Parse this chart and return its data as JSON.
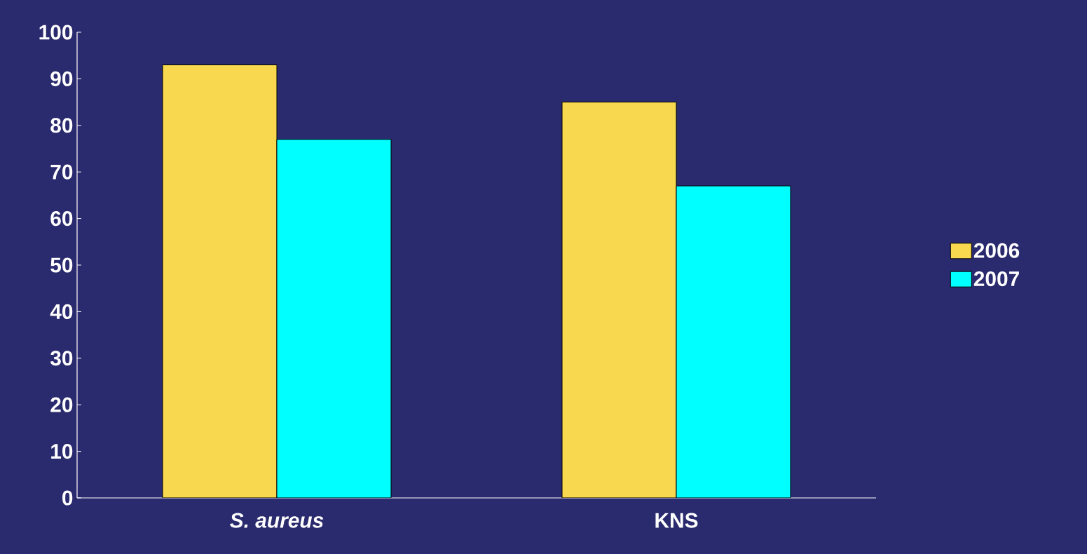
{
  "chart_data": {
    "type": "bar",
    "categories": [
      "*S. aureus*",
      "KNS"
    ],
    "series": [
      {
        "name": "2006",
        "color": "#f7d84f",
        "values": [
          93,
          85
        ]
      },
      {
        "name": "2007",
        "color": "#00ffff",
        "values": [
          77,
          67
        ]
      }
    ],
    "ylim": [
      0,
      100
    ],
    "yticks": [
      0,
      10,
      20,
      30,
      40,
      50,
      60,
      70,
      80,
      90,
      100
    ],
    "grid": false,
    "legend": "right"
  }
}
